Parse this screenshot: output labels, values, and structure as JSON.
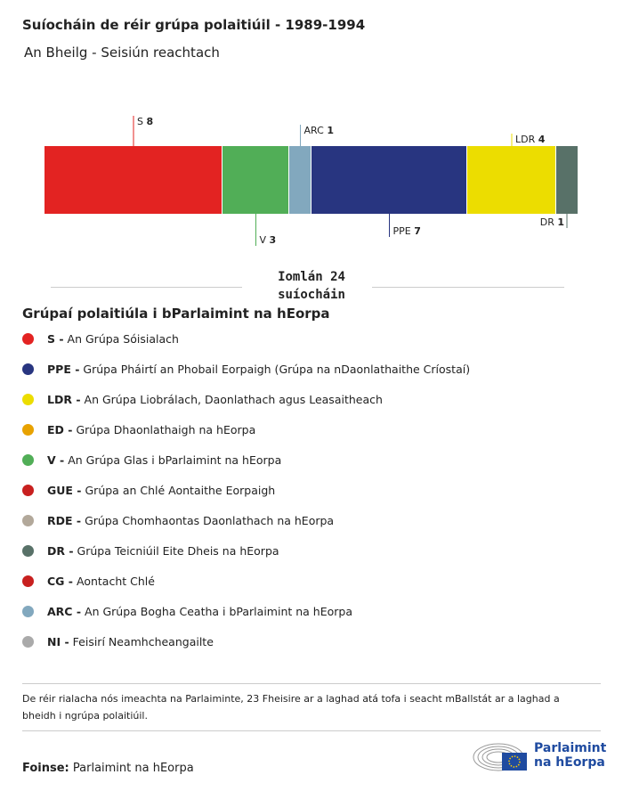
{
  "title": "Suíocháin de réir grúpa polaitiúil - 1989-1994",
  "subtitle": "An Bheilg - Seisiún reachtach",
  "chart_data": {
    "type": "bar",
    "orientation": "stacked-horizontal",
    "categories": [
      "S",
      "V",
      "ARC",
      "PPE",
      "LDR",
      "DR"
    ],
    "values": [
      8,
      3,
      1,
      7,
      4,
      1
    ],
    "colors": [
      "#e32322",
      "#51ae57",
      "#82a8be",
      "#283580",
      "#ecdd00",
      "#587168"
    ],
    "total_label": "Iomlán 24 suíocháin"
  },
  "legend": {
    "title": "Grúpaí polaitiúla i bParlaimint na hEorpa",
    "items": [
      {
        "code": "S -",
        "name": "An Grúpa Sóisialach",
        "color": "#e32322"
      },
      {
        "code": "PPE -",
        "name": "Grúpa Pháirtí an Phobail Eorpaigh (Grúpa na nDaonlathaithe Críostaí)",
        "color": "#283580"
      },
      {
        "code": "LDR -",
        "name": "An Grúpa Liobrálach, Daonlathach agus Leasaitheach",
        "color": "#ecdd00"
      },
      {
        "code": "ED -",
        "name": "Grúpa Dhaonlathaigh na hEorpa",
        "color": "#e8a200"
      },
      {
        "code": "V -",
        "name": "An Grúpa Glas i bParlaimint na hEorpa",
        "color": "#51ae57"
      },
      {
        "code": "GUE -",
        "name": "Grúpa an Chlé Aontaithe Eorpaigh",
        "color": "#c8201f"
      },
      {
        "code": "RDE -",
        "name": "Grúpa Chomhaontas Daonlathach na hEorpa",
        "color": "#b2a89a"
      },
      {
        "code": "DR -",
        "name": "Grúpa Teicniúil Eite Dheis na hEorpa",
        "color": "#587168"
      },
      {
        "code": "CG -",
        "name": "Aontacht Chlé",
        "color": "#c8201f"
      },
      {
        "code": "ARC -",
        "name": "An Grúpa Bogha Ceatha i bParlaimint na hEorpa",
        "color": "#82a8be"
      },
      {
        "code": "NI -",
        "name": "Feisirí Neamhcheangailte",
        "color": "#aaaaaa"
      }
    ]
  },
  "note": "De réir rialacha nós imeachta na Parlaiminte, 23 Fheisire ar a laghad atá tofa i seacht mBallstát ar a laghad a bheidh i ngrúpa polaitiúil.",
  "source": {
    "label": "Foinse:",
    "value": "Parlaimint na hEorpa"
  },
  "logo": {
    "line1": "Parlaimint",
    "line2": "na hEorpa"
  }
}
